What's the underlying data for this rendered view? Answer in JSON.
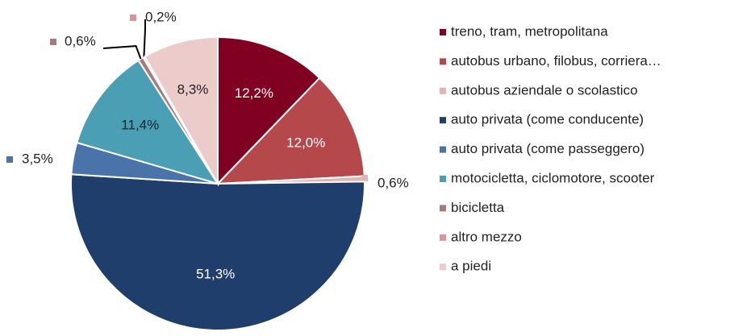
{
  "chart_data": {
    "type": "pie",
    "categories": [
      "treno, tram, metropolitana",
      "autobus urbano, filobus, corriera…",
      "autobus aziendale o scolastico",
      "auto privata (come conducente)",
      "auto privata (come passeggero)",
      "motocicletta, ciclomotore, scooter",
      "bicicletta",
      "altro mezzo",
      "a piedi"
    ],
    "values": [
      12.2,
      12.0,
      0.6,
      51.3,
      3.5,
      11.4,
      0.6,
      0.2,
      8.3
    ],
    "value_labels": [
      "12,2%",
      "12,0%",
      "0,6%",
      "51,3%",
      "3,5%",
      "11,4%",
      "0,6%",
      "0,2%",
      "8,3%"
    ],
    "colors": [
      "#7f0020",
      "#b5484a",
      "#e3b3b2",
      "#1f3e6b",
      "#4a73aa",
      "#4a9fb4",
      "#a87a7c",
      "#d99696",
      "#eccbcb"
    ],
    "legend": "right"
  }
}
